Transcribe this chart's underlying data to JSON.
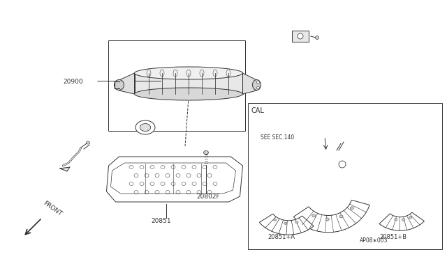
{
  "background_color": "#ffffff",
  "fig_width": 6.4,
  "fig_height": 3.72,
  "dpi": 100,
  "line_color": "#333333",
  "parts": {
    "label_20900": "20900",
    "label_20851": "20851",
    "label_20802F": "20802F",
    "label_cal": "CAL",
    "label_see_sec": "SEE SEC.140",
    "label_part_a": "20851+A",
    "label_part_b": "20851+B",
    "label_front": "FRONT",
    "label_code": "AP08∗003"
  }
}
